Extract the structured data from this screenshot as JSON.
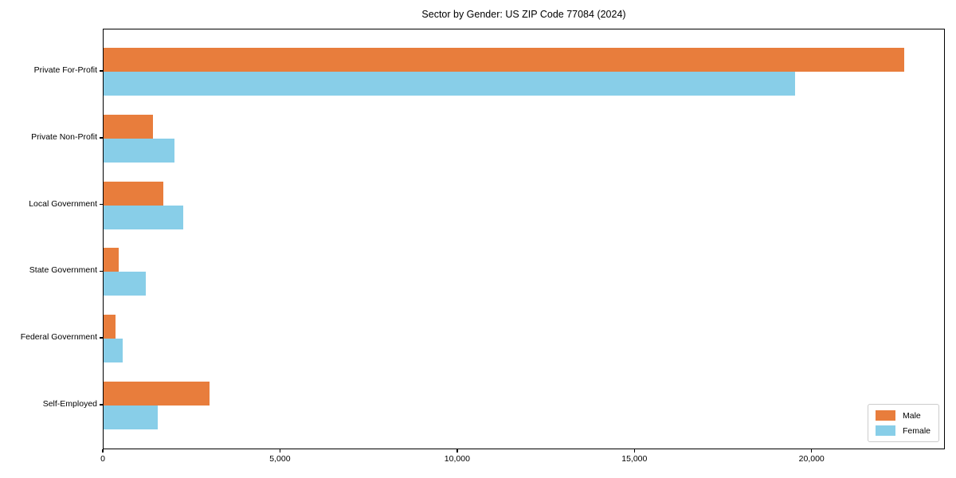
{
  "chart_data": {
    "type": "bar",
    "orientation": "horizontal",
    "title": "Sector by Gender: US ZIP Code 77084 (2024)",
    "categories": [
      "Private For-Profit",
      "Private Non-Profit",
      "Local Government",
      "State Government",
      "Federal Government",
      "Self-Employed"
    ],
    "series": [
      {
        "name": "Male",
        "color": "#e87d3c",
        "values": [
          22600,
          1400,
          1680,
          420,
          330,
          2980
        ]
      },
      {
        "name": "Female",
        "color": "#88cee8",
        "values": [
          19500,
          2000,
          2250,
          1200,
          530,
          1530
        ]
      }
    ],
    "xlabel": "",
    "ylabel": "",
    "xlim": [
      0,
      23760
    ],
    "x_tick_values": [
      0,
      5000,
      10000,
      15000,
      20000
    ],
    "x_tick_labels": [
      "0",
      "5,000",
      "10,000",
      "15,000",
      "20,000"
    ],
    "grid": false,
    "legend_position": "lower right"
  }
}
